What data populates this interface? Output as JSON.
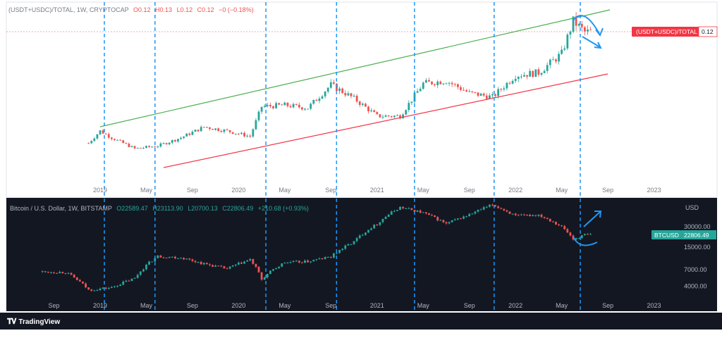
{
  "top_panel": {
    "legend": {
      "symbol": "(USDT+USDC)/TOTAL, 1W, CRYPTOCAP",
      "open": "O0.12",
      "high": "H0.13",
      "low": "L0.12",
      "close": "C0.12",
      "change": "−0 (−0.18%)"
    },
    "price_tag": {
      "label": "(USDT+USDC)/TOTAL",
      "value": "0.12",
      "color": "#f23645"
    },
    "time_labels": [
      "2019",
      "May",
      "Sep",
      "2020",
      "May",
      "Sep",
      "2021",
      "May",
      "Sep",
      "2022",
      "May",
      "Sep",
      "2023"
    ]
  },
  "bottom_panel": {
    "legend": {
      "symbol": "Bitcoin / U.S. Dollar, 1W, BITSTAMP",
      "open": "O22589.47",
      "high": "H23113.90",
      "low": "L20700.13",
      "close": "C22806.49",
      "change": "+210.68 (+0.93%)"
    },
    "axis_currency": "USD",
    "price_tag": {
      "label": "BTCUSD",
      "value": "22806.49",
      "color": "#26a69a"
    },
    "price_ticks": [
      "30000.00",
      "15000.00",
      "7000.00",
      "4000.00"
    ],
    "time_labels": [
      "Sep",
      "2019",
      "May",
      "Sep",
      "2020",
      "May",
      "Sep",
      "2021",
      "May",
      "Sep",
      "2022",
      "May",
      "Sep",
      "2023"
    ]
  },
  "footer": {
    "brand": "TradingView"
  },
  "colors": {
    "up": "#26a69a",
    "down": "#ef5350",
    "upper_channel": "#4caf50",
    "lower_channel": "#f23645",
    "vertical_markers": "#2196f3",
    "annotation_arrows": "#2196f3",
    "bottom_background": "#131722"
  },
  "chart_data": [
    {
      "type": "candlestick",
      "name": "(USDT+USDC)/TOTAL",
      "x_range": [
        "2018-12",
        "2023-02"
      ],
      "y_scale": "linear",
      "y_range_approx": [
        0.0,
        0.14
      ],
      "closes_approx_weekly_segments": [
        {
          "period": "2018-12",
          "value": 0.038
        },
        {
          "period": "2019-01",
          "value": 0.047
        },
        {
          "period": "2019-02",
          "value": 0.042
        },
        {
          "period": "2019-04",
          "value": 0.034
        },
        {
          "period": "2019-06",
          "value": 0.036
        },
        {
          "period": "2019-08",
          "value": 0.042
        },
        {
          "period": "2019-10",
          "value": 0.05
        },
        {
          "period": "2019-12",
          "value": 0.047
        },
        {
          "period": "2020-02",
          "value": 0.043
        },
        {
          "period": "2020-03",
          "value": 0.065
        },
        {
          "period": "2020-05",
          "value": 0.066
        },
        {
          "period": "2020-07",
          "value": 0.064
        },
        {
          "period": "2020-09",
          "value": 0.081
        },
        {
          "period": "2020-11",
          "value": 0.071
        },
        {
          "period": "2021-01",
          "value": 0.058
        },
        {
          "period": "2021-03",
          "value": 0.058
        },
        {
          "period": "2021-05",
          "value": 0.082
        },
        {
          "period": "2021-07",
          "value": 0.084
        },
        {
          "period": "2021-09",
          "value": 0.075
        },
        {
          "period": "2021-11",
          "value": 0.072
        },
        {
          "period": "2022-01",
          "value": 0.088
        },
        {
          "period": "2022-03",
          "value": 0.09
        },
        {
          "period": "2022-05",
          "value": 0.104
        },
        {
          "period": "2022-06",
          "value": 0.128
        },
        {
          "period": "2022-07",
          "value": 0.12
        }
      ],
      "trend_channel": {
        "upper": {
          "from": [
            "2019-01",
            0.048
          ],
          "to": [
            "2022-08",
            0.133
          ]
        },
        "lower": {
          "from": [
            "2019-05",
            0.02
          ],
          "to": [
            "2022-08",
            0.088
          ]
        }
      }
    },
    {
      "type": "candlestick",
      "name": "BTCUSD",
      "x_range": [
        "2018-08",
        "2023-02"
      ],
      "y_scale": "log",
      "y_ticks": [
        30000,
        15000,
        7000,
        4000
      ],
      "closes_approx_weekly_segments": [
        {
          "period": "2018-08",
          "value": 6500
        },
        {
          "period": "2018-10",
          "value": 6400
        },
        {
          "period": "2018-12",
          "value": 3500
        },
        {
          "period": "2019-02",
          "value": 3800
        },
        {
          "period": "2019-04",
          "value": 5200
        },
        {
          "period": "2019-06",
          "value": 11000
        },
        {
          "period": "2019-08",
          "value": 10500
        },
        {
          "period": "2019-10",
          "value": 8500
        },
        {
          "period": "2019-12",
          "value": 7200
        },
        {
          "period": "2020-02",
          "value": 9800
        },
        {
          "period": "2020-03",
          "value": 5000
        },
        {
          "period": "2020-05",
          "value": 8900
        },
        {
          "period": "2020-07",
          "value": 9200
        },
        {
          "period": "2020-09",
          "value": 10800
        },
        {
          "period": "2020-11",
          "value": 18000
        },
        {
          "period": "2021-01",
          "value": 33000
        },
        {
          "period": "2021-03",
          "value": 58000
        },
        {
          "period": "2021-05",
          "value": 48000
        },
        {
          "period": "2021-07",
          "value": 33000
        },
        {
          "period": "2021-09",
          "value": 45000
        },
        {
          "period": "2021-11",
          "value": 63000
        },
        {
          "period": "2022-01",
          "value": 43000
        },
        {
          "period": "2022-03",
          "value": 45000
        },
        {
          "period": "2022-05",
          "value": 30000
        },
        {
          "period": "2022-06",
          "value": 19500
        },
        {
          "period": "2022-07",
          "value": 22806.49
        }
      ]
    }
  ]
}
